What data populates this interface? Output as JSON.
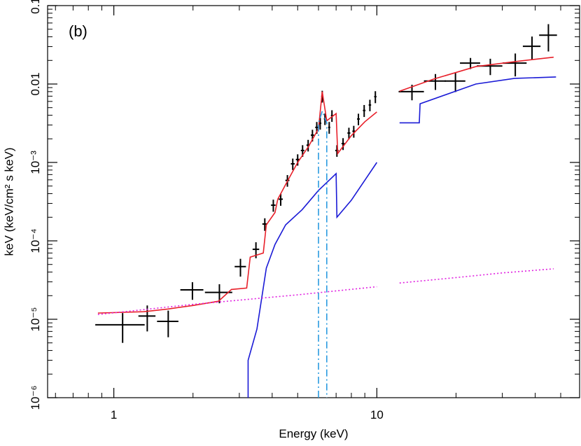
{
  "chart_data": {
    "type": "line",
    "annotation": "(b)",
    "x_label": "Energy (keV)",
    "y_label": "keV (keV/cm² s keV)",
    "xscale": "log",
    "yscale": "log",
    "xlim": [
      0.56,
      59
    ],
    "ylim": [
      1e-06,
      0.1
    ],
    "xticks": [
      1,
      10
    ],
    "xminorticks": [
      0.6,
      0.7,
      0.8,
      0.9,
      2,
      3,
      4,
      5,
      6,
      7,
      8,
      9,
      20,
      30,
      40,
      50
    ],
    "yticks": [
      {
        "value": 1e-06,
        "label": "10⁻⁶"
      },
      {
        "value": 1e-05,
        "label": "10⁻⁵"
      },
      {
        "value": 0.0001,
        "label": "10⁻⁴"
      },
      {
        "value": 0.001,
        "label": "10⁻³"
      },
      0.01,
      0.1
    ],
    "yminorticks": [
      2e-06,
      3e-06,
      4e-06,
      5e-06,
      6e-06,
      7e-06,
      8e-06,
      9e-06,
      2e-05,
      3e-05,
      4e-05,
      5e-05,
      6e-05,
      7e-05,
      8e-05,
      9e-05,
      0.0002,
      0.0003,
      0.0004,
      0.0005,
      0.0006,
      0.0007,
      0.0008,
      0.0009,
      0.002,
      0.003,
      0.004,
      0.005,
      0.006,
      0.007,
      0.008,
      0.009,
      0.02,
      0.03,
      0.04,
      0.05,
      0.06,
      0.07,
      0.08,
      0.09
    ],
    "series": [
      {
        "kind": "errorbar",
        "color": "#000000",
        "x": [
          1.08,
          1.34,
          1.61,
          1.99,
          2.52,
          3.03,
          3.47,
          3.75,
          4.04,
          4.31,
          4.57,
          4.79,
          5.0,
          5.22,
          5.48,
          5.69,
          5.91,
          6.09,
          6.2,
          6.35,
          6.59,
          6.75,
          7.05,
          7.44,
          7.83,
          8.17,
          8.51,
          8.95,
          9.41,
          9.87,
          13.6,
          16.7,
          19.9,
          22.7,
          27.0,
          33.6,
          38.9,
          44.9
        ],
        "values": [
          8.5e-06,
          1.1e-05,
          9.4e-06,
          2.37e-05,
          2.2e-05,
          4.7e-05,
          7.8e-05,
          0.000164,
          0.000285,
          0.00034,
          0.00059,
          0.00096,
          0.00109,
          0.00142,
          0.00166,
          0.00223,
          0.0028,
          0.00316,
          0.007,
          0.0036,
          0.0028,
          0.00396,
          0.00142,
          0.00174,
          0.00237,
          0.0025,
          0.00358,
          0.0046,
          0.0054,
          0.0069,
          0.008,
          0.0109,
          0.0109,
          0.0185,
          0.017,
          0.0185,
          0.0303,
          0.042
        ],
        "xerr": [
          0.23,
          0.1,
          0.15,
          0.2,
          0.3,
          0.15,
          0.1,
          0.08,
          0.08,
          0.08,
          0.08,
          0.08,
          0.08,
          0.08,
          0.08,
          0.08,
          0.08,
          0.06,
          0.06,
          0.06,
          0.06,
          0.06,
          0.1,
          0.1,
          0.1,
          0.1,
          0.1,
          0.1,
          0.1,
          0.1,
          1.5,
          1.6,
          1.8,
          2,
          3,
          3.5,
          3,
          3.5
        ],
        "yerr": [
          3.5e-06,
          4e-06,
          3.5e-06,
          6e-06,
          6e-06,
          1.2e-05,
          1.8e-05,
          3e-05,
          5e-05,
          6e-05,
          0.0001,
          0.00016,
          0.00018,
          0.00024,
          0.00028,
          0.00038,
          0.00048,
          0.00054,
          0.0012,
          0.0006,
          0.00048,
          0.00067,
          0.00024,
          0.0003,
          0.0004,
          0.00043,
          0.0006,
          0.0008,
          0.0009,
          0.0012,
          0.0018,
          0.0025,
          0.003,
          0.003,
          0.004,
          0.006,
          0.01,
          0.016
        ]
      },
      {
        "kind": "line",
        "linestyle": "solid",
        "color": "#e8202a",
        "x": [
          0.87,
          1.3,
          1.6,
          2.0,
          2.5,
          2.8,
          3.2,
          3.3,
          3.7,
          3.8,
          4.1,
          4.2,
          4.6,
          5.0,
          5.5,
          6.0,
          6.2,
          6.45,
          7.0,
          7.1,
          8.0,
          9.0,
          10.0,
          null,
          12.2,
          16.5,
          23.8,
          33.4,
          47
        ],
        "values": [
          1.2e-05,
          1.25e-05,
          1.35e-05,
          1.5e-05,
          1.7e-05,
          2.4e-05,
          2.5e-05,
          6.2e-05,
          7e-05,
          0.00016,
          0.00023,
          0.00034,
          0.0006,
          0.001,
          0.0016,
          0.0027,
          0.008,
          0.0034,
          0.0042,
          0.0013,
          0.0022,
          0.0033,
          0.0044,
          null,
          0.0081,
          0.0116,
          0.0167,
          0.0193,
          0.022
        ]
      },
      {
        "kind": "line",
        "linestyle": "solid",
        "color": "#1a1ad6",
        "x": [
          3.24,
          3.24,
          3.5,
          3.8,
          4.1,
          4.5,
          5.2,
          6.0,
          7.0,
          7.05,
          8.0,
          10.0,
          null,
          12.2,
          14.5,
          14.6,
          23.8,
          33.4,
          48
        ],
        "values": [
          1e-06,
          3e-06,
          7.5e-06,
          4.5e-05,
          9e-05,
          0.00016,
          0.00025,
          0.00044,
          0.00072,
          0.0002,
          0.00033,
          0.001,
          null,
          0.0032,
          0.0032,
          0.0056,
          0.01,
          0.0118,
          0.0123
        ]
      },
      {
        "kind": "line",
        "linestyle": "dotted",
        "color": "#e020e0",
        "x": [
          0.87,
          2,
          5,
          10,
          null,
          12.2,
          20,
          30,
          47
        ],
        "values": [
          1.15e-05,
          1.55e-05,
          2.05e-05,
          2.6e-05,
          null,
          2.9e-05,
          3.4e-05,
          3.9e-05,
          4.4e-05
        ]
      },
      {
        "kind": "line",
        "linestyle": "dashdot",
        "color": "#2a9be0",
        "x": [
          6.0,
          6.0,
          6.2,
          6.45,
          6.45
        ],
        "values": [
          1e-06,
          0.0032,
          0.0045,
          0.0032,
          1e-06
        ]
      }
    ]
  }
}
